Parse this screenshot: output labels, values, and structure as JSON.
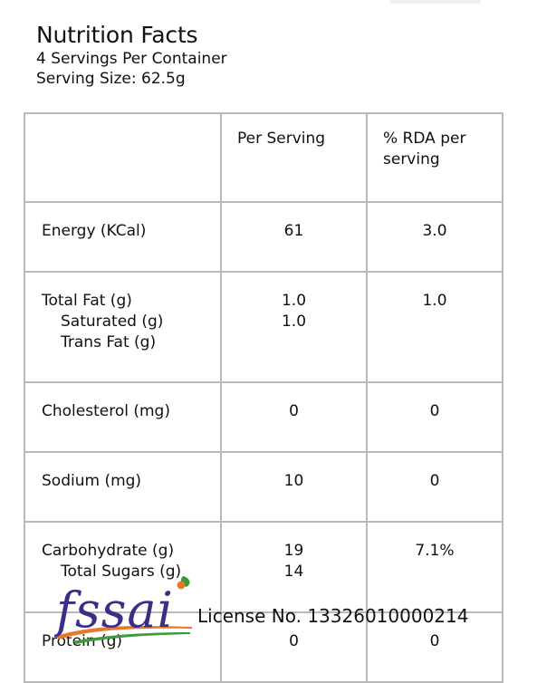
{
  "header": {
    "title": "Nutrition Facts",
    "servings": "4 Servings Per Container",
    "serving_size": "Serving Size: 62.5g"
  },
  "table": {
    "headers": [
      "",
      "Per Serving",
      "% RDA per serving"
    ],
    "rows": [
      {
        "name": "Energy (KCal)",
        "per_serving": "61",
        "rda": "3.0"
      },
      {
        "name": "Total Fat (g)",
        "sub1": "Saturated (g)",
        "sub2": "Trans Fat (g)",
        "per_serving": "1.0",
        "per_serving_sub1": "1.0",
        "rda": "1.0"
      },
      {
        "name": "Cholesterol (mg)",
        "per_serving": "0",
        "rda": "0"
      },
      {
        "name": "Sodium (mg)",
        "per_serving": "10",
        "rda": "0"
      },
      {
        "name": "Carbohydrate (g)",
        "sub1": "Total Sugars (g)",
        "per_serving": "19",
        "per_serving_sub1": "14",
        "rda": "7.1%"
      },
      {
        "name": "Protein (g)",
        "per_serving": "0",
        "rda": "0"
      }
    ]
  },
  "footer": {
    "logo_text": "fssai",
    "license": "License No. 13326010000214"
  },
  "colors": {
    "logo_blue": "#3a2f86",
    "logo_orange": "#e8782a",
    "logo_green": "#3c9a3c",
    "border": "#b9b9b9"
  }
}
